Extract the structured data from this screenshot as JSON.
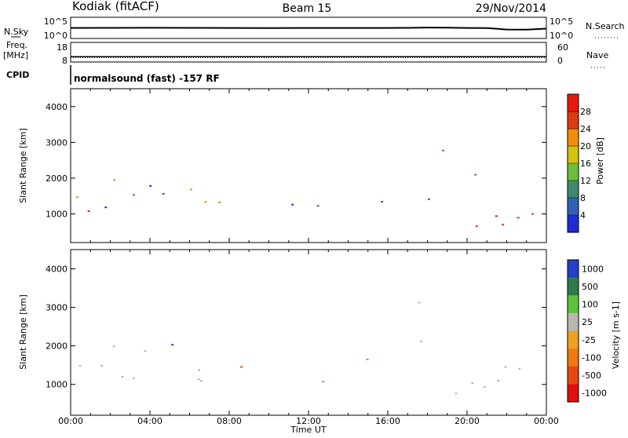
{
  "header": {
    "station": "Kodiak (fitACF)",
    "beam": "Beam 15",
    "date": "29/Nov/2014",
    "nsky_label": "N.Sky",
    "nsearch_label": "N.Search",
    "freq_label_1": "Freq.",
    "freq_label_2": "[MHz]",
    "nave_label": "Nave",
    "cpid_label": "CPID",
    "cpid_text": "normalsound (fast) -157 RF"
  },
  "chart_data": [
    {
      "type": "line",
      "id": "noise",
      "ylabel_left": "N.Sky",
      "ylabel_right": "N.Search",
      "yticks": [
        "10^5",
        "10^0"
      ],
      "log_scale": true,
      "x": [
        0,
        2,
        4,
        6,
        8,
        10,
        12,
        14,
        16,
        17,
        18,
        19,
        20,
        21,
        22,
        23,
        24
      ],
      "series": [
        {
          "values": [
            300,
            320,
            330,
            310,
            300,
            290,
            300,
            305,
            300,
            320,
            380,
            360,
            300,
            280,
            120,
            110,
            200
          ]
        }
      ]
    },
    {
      "type": "line",
      "id": "freq_nave",
      "ylabel_left": "Freq. [MHz]",
      "ylabel_right": "Nave",
      "yticks_left": [
        8,
        18
      ],
      "yticks_right": [
        0,
        60
      ],
      "x": [
        0,
        24
      ],
      "series": [
        {
          "values": [
            10.5,
            10.5
          ]
        },
        {
          "values": [
            12,
            12
          ]
        }
      ]
    },
    {
      "type": "heatmap",
      "id": "power",
      "xlabel": "",
      "ylabel": "Slant Range [km]",
      "xlim": [
        0,
        24
      ],
      "ylim": [
        200,
        4500
      ],
      "yticks": [
        1000,
        2000,
        3000,
        4000
      ],
      "colorbar_label": "Power [dB]",
      "colorbar_ticks": [
        4,
        8,
        12,
        16,
        20,
        24,
        28
      ],
      "colors": [
        "#1e2bd6",
        "#2f62b4",
        "#3e8a6e",
        "#6abf3c",
        "#d3c40d",
        "#f08f0c",
        "#e03a10",
        "#e81a0f"
      ]
    },
    {
      "type": "heatmap",
      "id": "velocity",
      "xlabel": "Time UT",
      "ylabel": "Slant Range [km]",
      "xlim": [
        0,
        24
      ],
      "ylim": [
        200,
        4500
      ],
      "yticks": [
        1000,
        2000,
        3000,
        4000
      ],
      "xticks": [
        "00:00",
        "04:00",
        "08:00",
        "12:00",
        "16:00",
        "20:00",
        "00:00"
      ],
      "colorbar_label": "Velocity [m s-1]",
      "colorbar_ticks": [
        "1000",
        "500",
        "100",
        "25",
        "-25",
        "-100",
        "-500",
        "-1000"
      ],
      "colors": [
        "#2240c8",
        "#2e7a4a",
        "#5cc43a",
        "#b8b8b0",
        "#f0a020",
        "#f07a10",
        "#e84512",
        "#e01010"
      ]
    }
  ]
}
